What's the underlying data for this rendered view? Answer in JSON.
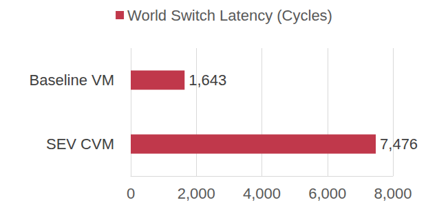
{
  "chart_data": {
    "type": "bar",
    "orientation": "horizontal",
    "categories": [
      "Baseline VM",
      "SEV CVM"
    ],
    "series": [
      {
        "name": "World Switch Latency (Cycles)",
        "color": "#c0384b",
        "values": [
          1643,
          7476
        ],
        "value_labels": [
          "1,643",
          "7,476"
        ]
      }
    ],
    "xlim": [
      0,
      8000
    ],
    "xticks": [
      0,
      {
        "value": 2000,
        "label": "2,000"
      },
      {
        "value": 4000,
        "label": "4,000"
      },
      {
        "value": 6000,
        "label": "6,000"
      },
      {
        "value": 8000,
        "label": "8,000"
      }
    ],
    "grid": true,
    "legend": "top",
    "data_labels": true
  }
}
